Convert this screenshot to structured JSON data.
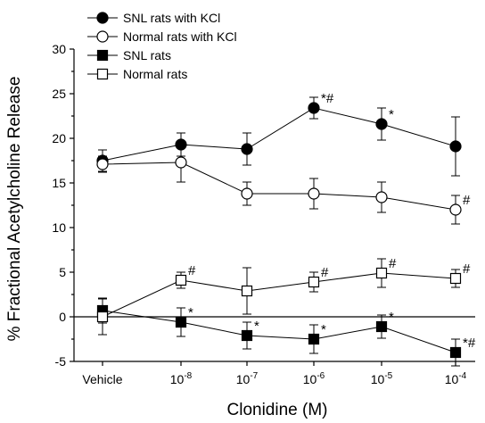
{
  "chart_data": {
    "type": "line",
    "xlabel": "Clonidine (M)",
    "ylabel": "% Fractional Acetylcholine Release",
    "ylim": [
      -5,
      30
    ],
    "yticks": [
      -5,
      0,
      5,
      10,
      15,
      20,
      25,
      30
    ],
    "categories": [
      {
        "base": "Vehicle",
        "exp": ""
      },
      {
        "base": "10",
        "exp": "-8"
      },
      {
        "base": "10",
        "exp": "-7"
      },
      {
        "base": "10",
        "exp": "-6"
      },
      {
        "base": "10",
        "exp": "-5"
      },
      {
        "base": "10",
        "exp": "-4"
      }
    ],
    "reference_line_y": 0,
    "legend_position": "top-left",
    "series": [
      {
        "name": "SNL rats with KCl",
        "marker": "circle",
        "fill": "#000000",
        "values": [
          17.5,
          19.3,
          18.8,
          23.4,
          21.6,
          19.1
        ],
        "err": [
          1.2,
          1.3,
          1.8,
          1.2,
          1.8,
          3.3
        ],
        "annotations": [
          "",
          "",
          "",
          "*#",
          "*",
          ""
        ]
      },
      {
        "name": "Normal rats with KCl",
        "marker": "circle",
        "fill": "#ffffff",
        "values": [
          17.1,
          17.3,
          13.8,
          13.8,
          13.4,
          12.0
        ],
        "err": [
          0.9,
          2.2,
          1.3,
          1.7,
          1.7,
          1.6
        ],
        "annotations": [
          "",
          "",
          "",
          "",
          "",
          "#"
        ]
      },
      {
        "name": "SNL rats",
        "marker": "square",
        "fill": "#000000",
        "values": [
          0.7,
          -0.6,
          -2.1,
          -2.5,
          -1.1,
          -4.0
        ],
        "err": [
          1.4,
          1.6,
          1.5,
          1.6,
          1.3,
          1.5
        ],
        "annotations": [
          "",
          "*",
          "*",
          "*",
          "*",
          "*#"
        ]
      },
      {
        "name": "Normal rats",
        "marker": "square",
        "fill": "#ffffff",
        "values": [
          0.0,
          4.1,
          2.9,
          3.9,
          4.9,
          4.3
        ],
        "err": [
          2.0,
          0.9,
          2.6,
          1.1,
          1.6,
          1.0
        ],
        "annotations": [
          "",
          "#",
          "",
          "#",
          "#",
          "#"
        ]
      }
    ]
  }
}
